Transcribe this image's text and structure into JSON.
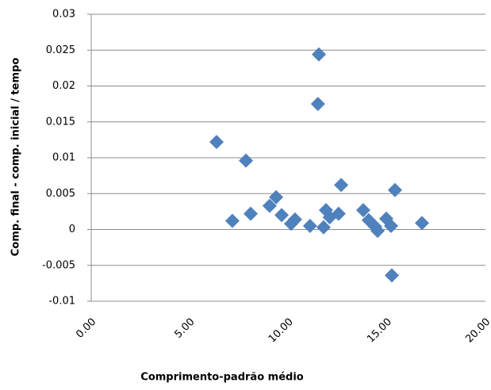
{
  "chart_data": {
    "type": "scatter",
    "x_label": "Comprimento-padrão médio",
    "y_label": "Comp. final - comp. inicial / tempo",
    "color": "#4f81bd",
    "grid": true,
    "xlim": [
      0,
      20
    ],
    "xticks": [
      {
        "value": 0,
        "label": "0.00"
      },
      {
        "value": 5,
        "label": "5.00"
      },
      {
        "value": 10,
        "label": "10.00"
      },
      {
        "value": 15,
        "label": "15.00"
      },
      {
        "value": 20,
        "label": "20.00"
      }
    ],
    "ylim": [
      -0.01,
      0.03
    ],
    "yticks": [
      0.03,
      0.025,
      0.02,
      0.015,
      0.01,
      0.005,
      0,
      -0.005,
      -0.01
    ],
    "x": [
      6.36,
      7.16,
      7.85,
      8.09,
      9.05,
      9.38,
      9.66,
      10.14,
      10.34,
      11.1,
      11.55,
      11.5,
      11.79,
      11.91,
      12.1,
      12.55,
      12.68,
      13.8,
      14.08,
      14.4,
      14.53,
      14.97,
      15.21,
      15.25,
      15.41,
      16.78
    ],
    "values": [
      0.0122,
      0.0012,
      0.0096,
      0.0022,
      0.0033,
      0.0045,
      0.002,
      0.0008,
      0.0014,
      0.0005,
      0.0244,
      0.0175,
      0.0003,
      0.0027,
      0.0017,
      0.0022,
      0.0062,
      0.0027,
      0.0013,
      0.0004,
      -0.0002,
      0.0015,
      0.0005,
      -0.0064,
      0.0055,
      0.0009
    ]
  }
}
